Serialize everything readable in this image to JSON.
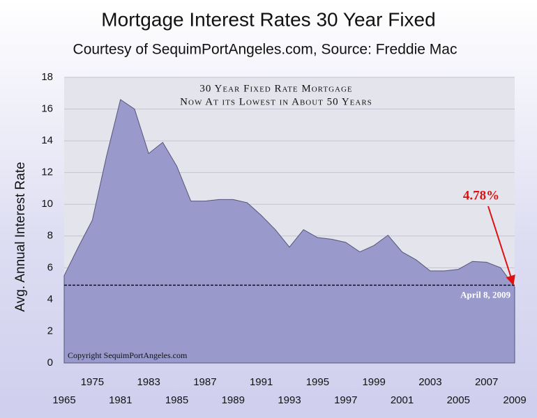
{
  "chart_data": {
    "type": "area",
    "title": "Mortgage Interest Rates 30 Year Fixed",
    "subtitle": "Courtesy of SequimPortAngeles.com, Source: Freddie Mac",
    "y_label": "Avg. Annual Interest Rate",
    "annotations": [
      "30 Year Fixed Rate Mortgage",
      "Now At its Lowest in About 50 Years"
    ],
    "copyright": "Copyright SequimPortAngeles.com",
    "reference_line": {
      "value": 4.9,
      "label": "April 8, 2009"
    },
    "categories": [
      "1965",
      null,
      "1975",
      null,
      "1981",
      null,
      "1983",
      null,
      "1985",
      null,
      "1987",
      null,
      "1989",
      null,
      "1991",
      null,
      "1993",
      null,
      "1995",
      null,
      "1997",
      null,
      "1999",
      null,
      "2001",
      null,
      "2003",
      null,
      "2005",
      null,
      "2007",
      null,
      "2009"
    ],
    "values": [
      5.5,
      7.3,
      9.0,
      13.0,
      16.6,
      16.0,
      13.2,
      13.9,
      12.4,
      10.2,
      10.2,
      10.3,
      10.3,
      10.1,
      9.3,
      8.4,
      7.3,
      8.4,
      7.9,
      7.8,
      7.6,
      7.0,
      7.4,
      8.05,
      7.0,
      6.5,
      5.8,
      5.8,
      5.9,
      6.4,
      6.35,
      6.0,
      4.78
    ],
    "last_label": "4.78%",
    "color": "#9999cc",
    "ylim": [
      0,
      18
    ],
    "yticks": [
      0,
      2,
      4,
      6,
      8,
      10,
      12,
      14,
      16,
      18
    ],
    "grid": true
  }
}
